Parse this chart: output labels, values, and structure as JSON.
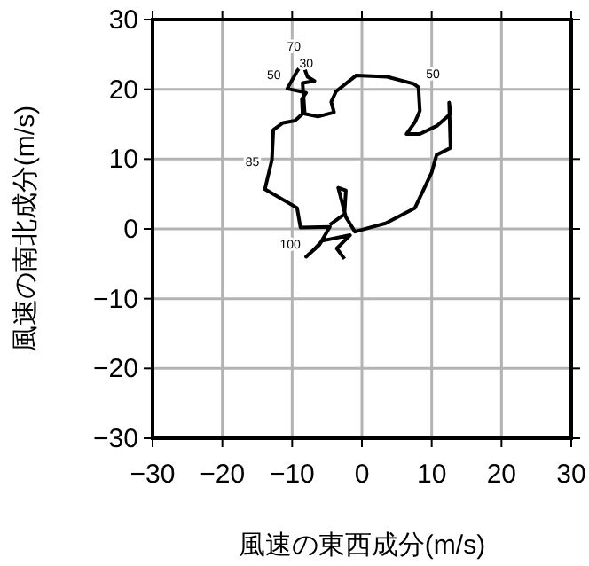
{
  "chart_data": {
    "type": "line",
    "xlabel": "風速の東西成分(m/s)",
    "ylabel": "風速の南北成分(m/s)",
    "x": [
      -2.5,
      -3.6,
      -1.7,
      -5.7,
      -6.9,
      -8.0,
      -6.1,
      -4.6,
      -8.8,
      -9.3,
      -13.9,
      -12.9,
      -12.7,
      -11.3,
      -9.6,
      -8.5,
      -8.6,
      -8.0,
      -10.7,
      -9.3,
      -8.5,
      -7.8,
      -6.8,
      -8.5,
      -8.2,
      -6.3,
      -4.0,
      -4.4,
      -3.7,
      -0.8,
      3.6,
      7.4,
      8.1,
      8.3,
      7.6,
      6.4,
      8.3,
      10.8,
      12.7,
      12.5,
      12.7,
      10.7,
      10.0,
      7.6,
      3.4,
      -1.0,
      -2.3,
      -3.4,
      -2.3,
      -2.5,
      -4.6
    ],
    "values": [
      -4.3,
      -2.8,
      -0.9,
      -1.7,
      -3.0,
      -4.0,
      -2.3,
      0.3,
      0.2,
      3.0,
      5.7,
      9.9,
      14.2,
      15.2,
      15.5,
      16.5,
      18.6,
      19.5,
      20.1,
      22.6,
      23.7,
      21.8,
      21.2,
      20.9,
      16.5,
      16.1,
      16.7,
      18.2,
      19.7,
      22.0,
      21.8,
      20.8,
      20.3,
      16.9,
      15.3,
      13.6,
      13.6,
      14.8,
      16.5,
      18.1,
      11.6,
      10.6,
      8.1,
      3.0,
      0.8,
      -0.4,
      1.7,
      5.9,
      5.5,
      2.1,
      0.6
    ],
    "color": "#000000",
    "xlim": [
      -30,
      30
    ],
    "ylim": [
      -30,
      30
    ],
    "xticks": [
      {
        "value": -30,
        "label": "−30"
      },
      {
        "value": -20,
        "label": "−20"
      },
      {
        "value": -10,
        "label": "−10"
      },
      0,
      10,
      20,
      30
    ],
    "yticks": [
      {
        "value": -30,
        "label": "−30"
      },
      {
        "value": -20,
        "label": "−20"
      },
      {
        "value": -10,
        "label": "−10"
      },
      0,
      10,
      20,
      30
    ],
    "grid": true,
    "annotations": [
      {
        "text": "50",
        "x": -10.7,
        "y": 20.1
      },
      {
        "text": "70",
        "x": -8.5,
        "y": 23.7
      },
      {
        "text": "30",
        "x": -6.8,
        "y": 21.2
      },
      {
        "text": "85",
        "x": -12.9,
        "y": 9.9
      },
      {
        "text": "50",
        "x": 8.1,
        "y": 20.3
      },
      {
        "text": "100",
        "x": -8.8,
        "y": 0.2
      }
    ]
  }
}
